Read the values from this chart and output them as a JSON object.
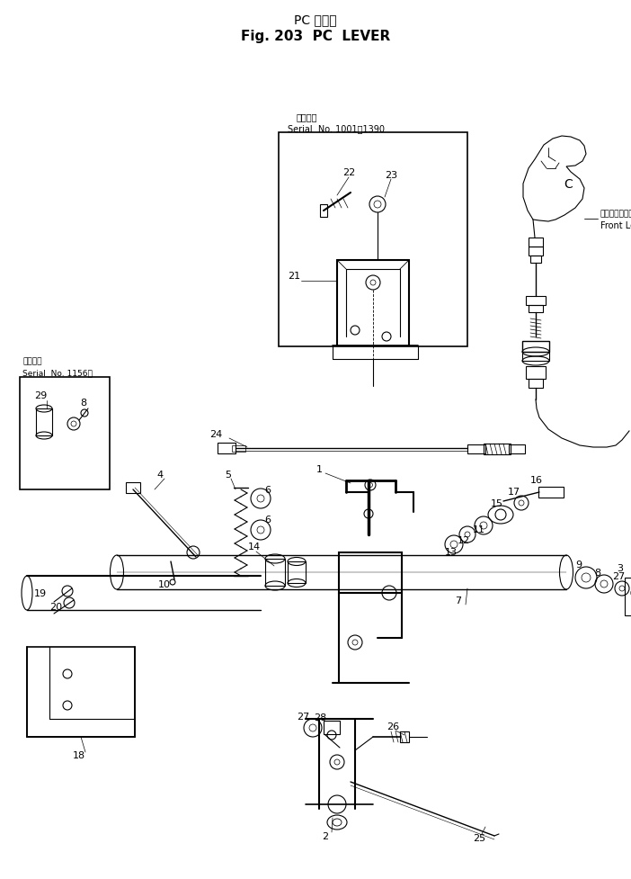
{
  "title_line1": "PC レバー",
  "title_line2": "Fig. 203  PC  LEVER",
  "bg_color": "#ffffff",
  "line_color": "#000000",
  "fig_width": 7.02,
  "fig_height": 9.78,
  "dpi": 100,
  "serial_box1_label1": "適用号機",
  "serial_box1_label2": "Serial  No. 1001～1390",
  "serial_box2_label1": "適用号機",
  "serial_box2_label2": "Serial  No. 1156～",
  "front_lever_label1": "フロントレバー",
  "front_lever_label2": "Front Lever"
}
